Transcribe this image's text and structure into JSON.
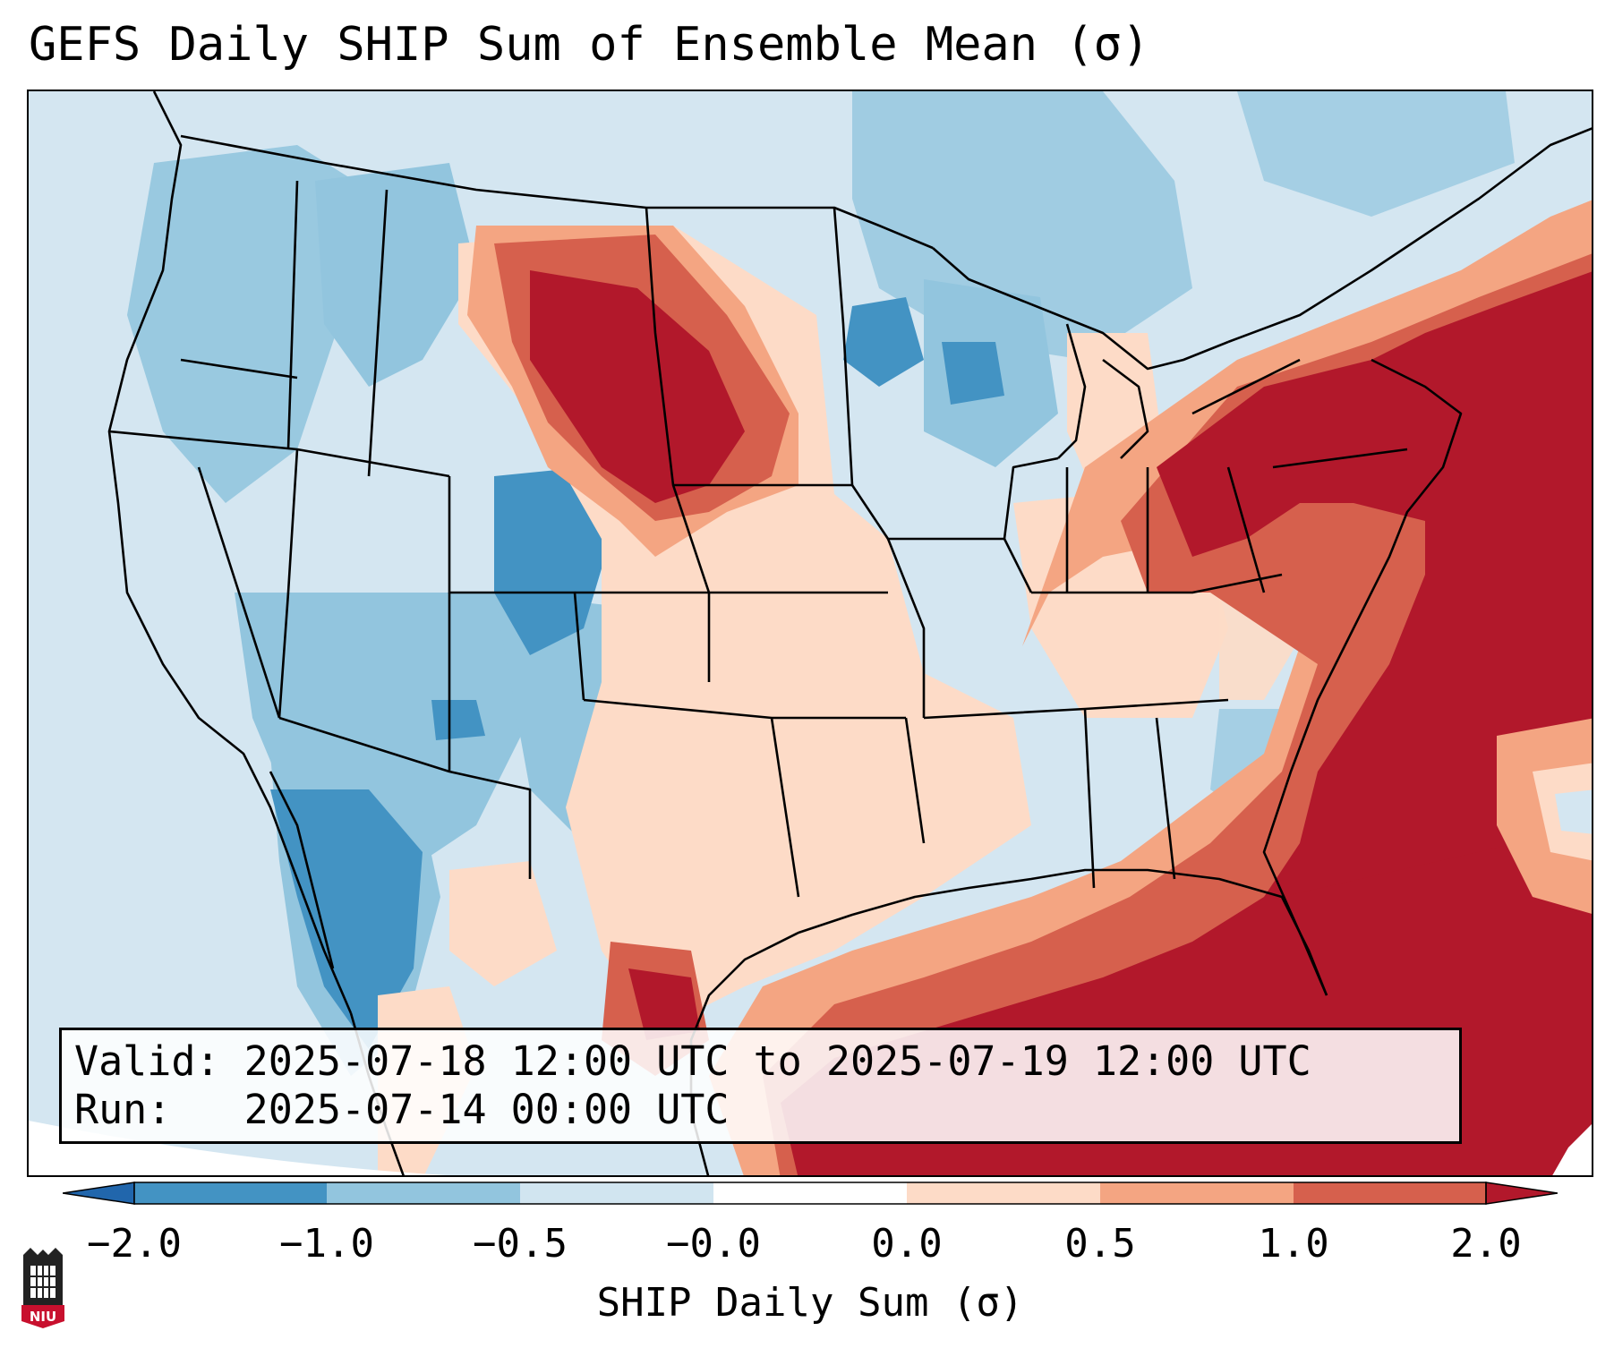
{
  "title": "GEFS Daily SHIP Sum of Ensemble Mean (σ)",
  "info": {
    "valid_line": "Valid: 2025-07-18 12:00 UTC to 2025-07-19 12:00 UTC",
    "run_line": "Run:   2025-07-14 00:00 UTC"
  },
  "colorbar": {
    "label": "SHIP Daily Sum (σ)",
    "tick_labels": [
      "−2.0",
      "−1.0",
      "−0.5",
      "−0.0",
      "0.0",
      "0.5",
      "1.0",
      "2.0"
    ],
    "colors": [
      "#4393c3",
      "#92c5de",
      "#d1e5f0",
      "#ffffff",
      "#fddbc7",
      "#f4a582",
      "#d6604d",
      "#b2182b"
    ],
    "extend": "both"
  },
  "logo": {
    "text": "NIU"
  },
  "icons": [
    "niu-logo-icon"
  ]
}
